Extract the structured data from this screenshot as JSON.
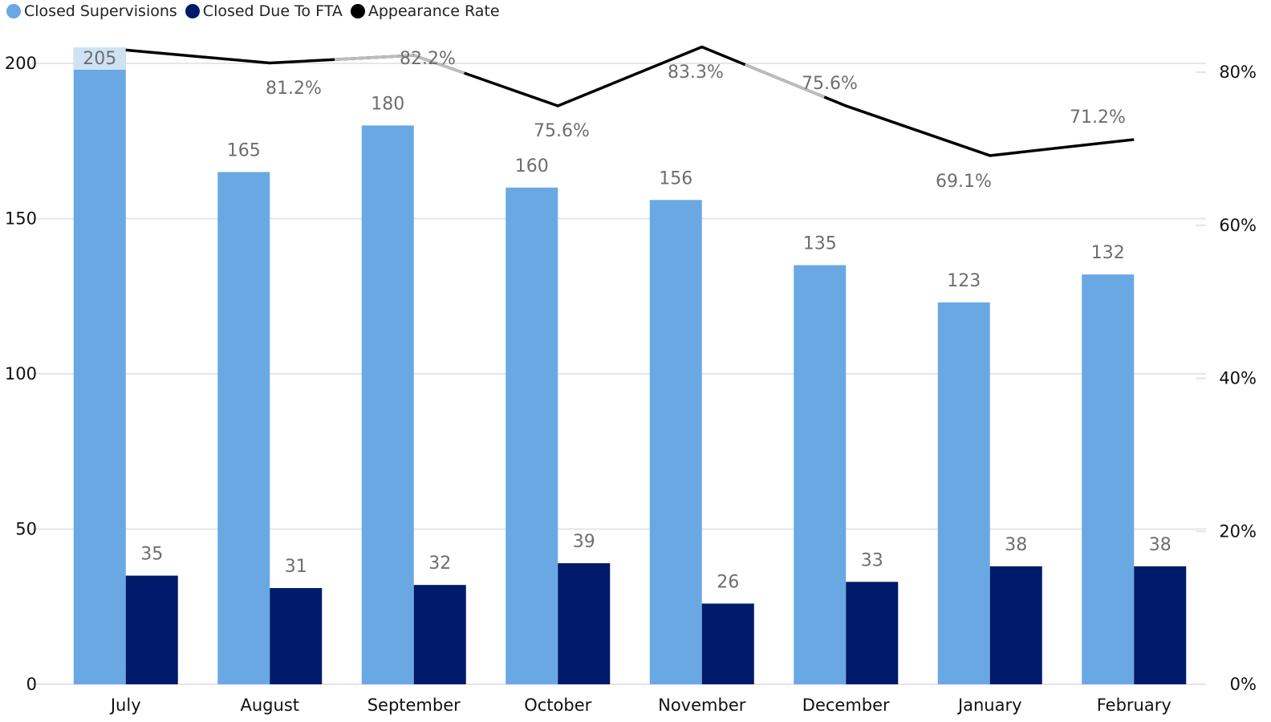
{
  "legend": [
    {
      "label": "Closed Supervisions",
      "color": "#6aa8e3"
    },
    {
      "label": "Closed Due To FTA",
      "color": "#001a6b"
    },
    {
      "label": "Appearance Rate",
      "color": "#000000"
    }
  ],
  "chart_data": {
    "type": "bar",
    "categories": [
      "July",
      "August",
      "September",
      "October",
      "November",
      "December",
      "January",
      "February"
    ],
    "series": [
      {
        "name": "Closed Supervisions",
        "type": "bar",
        "axis": "left",
        "color": "#6aa8e3",
        "values": [
          205,
          165,
          180,
          160,
          156,
          135,
          123,
          132
        ]
      },
      {
        "name": "Closed Due To FTA",
        "type": "bar",
        "axis": "left",
        "color": "#001a6b",
        "values": [
          35,
          31,
          32,
          39,
          26,
          33,
          38,
          38
        ]
      },
      {
        "name": "Appearance Rate",
        "type": "line",
        "axis": "right",
        "color": "#000000",
        "values": [
          82.9,
          81.2,
          82.2,
          75.6,
          83.3,
          75.6,
          69.1,
          71.2
        ],
        "labels": [
          "",
          "81.2%",
          "82.2%",
          "75.6%",
          "83.3%",
          "75.6%",
          "69.1%",
          "71.2%"
        ]
      }
    ],
    "left_axis": {
      "ticks": [
        "0",
        "50",
        "100",
        "150",
        "200"
      ],
      "tick_values": [
        0,
        50,
        100,
        150,
        200
      ],
      "ylim": [
        0,
        200
      ]
    },
    "right_axis": {
      "ticks": [
        "0%",
        "20%",
        "40%",
        "60%",
        "80%"
      ],
      "tick_values": [
        0,
        20,
        40,
        60,
        80
      ],
      "ylim": [
        0,
        81
      ]
    },
    "grid": true,
    "legend_position": "top-left"
  }
}
